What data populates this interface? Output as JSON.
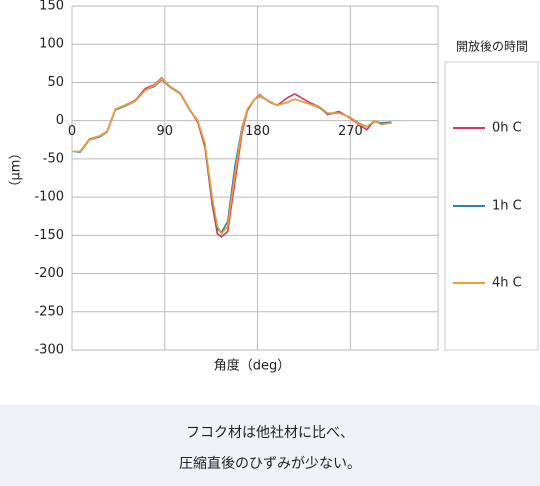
{
  "chart_data": {
    "type": "line",
    "ylabel": "（μm）",
    "xlabel": "角度（deg）",
    "legend_title": "開放後の時間",
    "legend_position": "right",
    "x": [
      0,
      8,
      17,
      27,
      34,
      42,
      51,
      61,
      71,
      80,
      87,
      95,
      105,
      114,
      122,
      129,
      136,
      141,
      145,
      151,
      158,
      165,
      170,
      177,
      182,
      192,
      199,
      209,
      216,
      230,
      240,
      248,
      259,
      269,
      279,
      286,
      293,
      300,
      310
    ],
    "series": [
      {
        "name": "0h C",
        "color": "#d9385a",
        "values": [
          -40,
          -40,
          -24,
          -20,
          -14,
          15,
          20,
          26,
          42,
          47,
          56,
          45,
          36,
          15,
          -2,
          -35,
          -110,
          -148,
          -152,
          -145,
          -80,
          -15,
          13,
          28,
          34,
          24,
          20,
          30,
          35,
          24,
          18,
          8,
          12,
          4,
          -6,
          -12,
          0,
          -4,
          -3
        ]
      },
      {
        "name": "1h C",
        "color": "#2e7fb3",
        "values": [
          -40,
          -41,
          -25,
          -21,
          -15,
          14,
          19,
          25,
          40,
          45,
          54,
          44,
          35,
          14,
          0,
          -32,
          -105,
          -142,
          -146,
          -132,
          -60,
          -8,
          14,
          28,
          32,
          25,
          20,
          24,
          28,
          22,
          17,
          9,
          10,
          5,
          -4,
          -8,
          -1,
          -3,
          -2
        ]
      },
      {
        "name": "4h C",
        "color": "#f0a030",
        "values": [
          -40,
          -40,
          -25,
          -20,
          -15,
          15,
          20,
          25,
          40,
          46,
          55,
          45,
          35,
          15,
          0,
          -30,
          -100,
          -138,
          -148,
          -138,
          -70,
          -10,
          15,
          28,
          33,
          25,
          20,
          24,
          28,
          22,
          18,
          10,
          10,
          5,
          -5,
          -8,
          0,
          -5,
          -3
        ]
      }
    ],
    "xlim": [
      0,
      355
    ],
    "xticks": [
      0,
      90,
      180,
      270
    ],
    "ylim": [
      -300,
      150
    ],
    "yticks": [
      -300,
      -250,
      -200,
      -150,
      -100,
      -50,
      0,
      50,
      100,
      150
    ],
    "grid": true
  },
  "caption": {
    "lines": [
      "フコク材は他社材に比べ、",
      "圧縮直後のひずみが少ない。"
    ]
  }
}
